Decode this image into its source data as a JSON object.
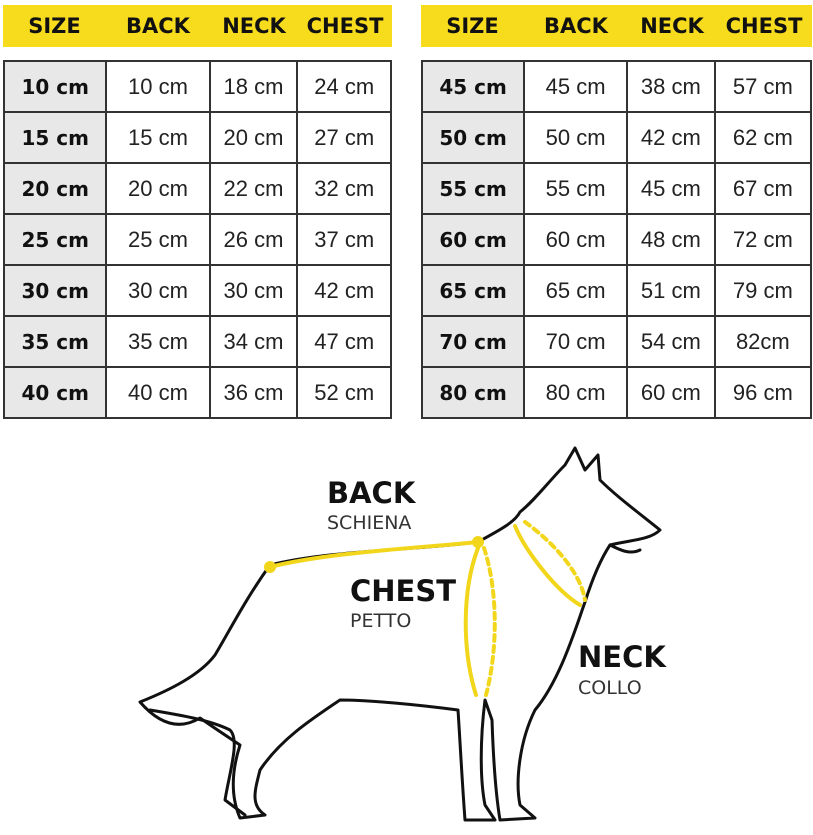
{
  "headers": [
    "SIZE",
    "BACK",
    "NECK",
    "CHEST"
  ],
  "left_rows": [
    [
      "10 cm",
      "10 cm",
      "18 cm",
      "24 cm"
    ],
    [
      "15 cm",
      "15 cm",
      "20 cm",
      "27 cm"
    ],
    [
      "20 cm",
      "20 cm",
      "22 cm",
      "32 cm"
    ],
    [
      "25 cm",
      "25 cm",
      "26 cm",
      "37 cm"
    ],
    [
      "30 cm",
      "30 cm",
      "30 cm",
      "42 cm"
    ],
    [
      "35 cm",
      "35 cm",
      "34 cm",
      "47 cm"
    ],
    [
      "40 cm",
      "40 cm",
      "36 cm",
      "52 cm"
    ]
  ],
  "right_rows": [
    [
      "45 cm",
      "45 cm",
      "38 cm",
      "57 cm"
    ],
    [
      "50 cm",
      "50 cm",
      "42 cm",
      "62 cm"
    ],
    [
      "55 cm",
      "55 cm",
      "45 cm",
      "67 cm"
    ],
    [
      "60 cm",
      "60 cm",
      "48 cm",
      "72 cm"
    ],
    [
      "65 cm",
      "65 cm",
      "51 cm",
      "79 cm"
    ],
    [
      "70 cm",
      "70 cm",
      "54 cm",
      "82cm"
    ],
    [
      "80 cm",
      "80 cm",
      "60 cm",
      "96 cm"
    ]
  ],
  "diagram": {
    "back": {
      "title": "BACK",
      "subtitle": "SCHIENA"
    },
    "chest": {
      "title": "CHEST",
      "subtitle": "PETTO"
    },
    "neck": {
      "title": "NECK",
      "subtitle": "COLLO"
    }
  },
  "colors": {
    "accent": "#f7dc1e",
    "size_cell": "#e8e8e8"
  }
}
